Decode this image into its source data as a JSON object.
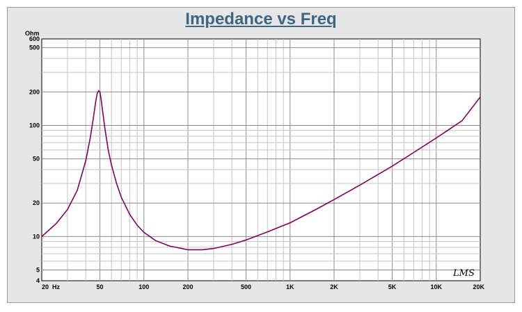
{
  "chart_data": {
    "type": "line",
    "title": "Impedance vs Freq",
    "ylabel": "Ohm",
    "xlabel": "",
    "x_scale": "log",
    "y_scale": "log",
    "xlim": [
      20,
      20000
    ],
    "ylim": [
      4,
      600
    ],
    "x_tick_labels": [
      {
        "value": 20,
        "label": "20  Hz"
      },
      {
        "value": 50,
        "label": "50"
      },
      {
        "value": 100,
        "label": "100"
      },
      {
        "value": 200,
        "label": "200"
      },
      {
        "value": 500,
        "label": "500"
      },
      {
        "value": 1000,
        "label": "1K"
      },
      {
        "value": 2000,
        "label": "2K"
      },
      {
        "value": 5000,
        "label": "5K"
      },
      {
        "value": 10000,
        "label": "10K"
      },
      {
        "value": 20000,
        "label": "20K"
      }
    ],
    "y_tick_labels": [
      {
        "value": 4,
        "label": "4"
      },
      {
        "value": 5,
        "label": "5"
      },
      {
        "value": 10,
        "label": "10"
      },
      {
        "value": 20,
        "label": "20"
      },
      {
        "value": 50,
        "label": "50"
      },
      {
        "value": 100,
        "label": "100"
      },
      {
        "value": 200,
        "label": "200"
      },
      {
        "value": 500,
        "label": "500"
      },
      {
        "value": 600,
        "label": "600"
      }
    ],
    "grid": true,
    "series": [
      {
        "color": "#800060",
        "x": [
          20,
          25,
          30,
          35,
          40,
          43,
          45,
          47,
          48,
          49,
          50,
          51,
          52,
          54,
          57,
          60,
          65,
          70,
          80,
          90,
          100,
          120,
          150,
          200,
          250,
          300,
          400,
          500,
          700,
          1000,
          1500,
          2000,
          3000,
          5000,
          7000,
          10000,
          15000,
          20000
        ],
        "y": [
          10,
          13,
          17.5,
          26,
          48,
          78,
          115,
          170,
          195,
          205,
          200,
          170,
          140,
          95,
          60,
          44,
          30,
          22.5,
          15.8,
          12.6,
          10.9,
          9.2,
          8.2,
          7.6,
          7.6,
          7.8,
          8.5,
          9.3,
          11,
          13.3,
          17.5,
          21.5,
          29,
          43,
          57,
          77,
          110,
          180
        ]
      }
    ]
  },
  "logo_text": "LMS"
}
